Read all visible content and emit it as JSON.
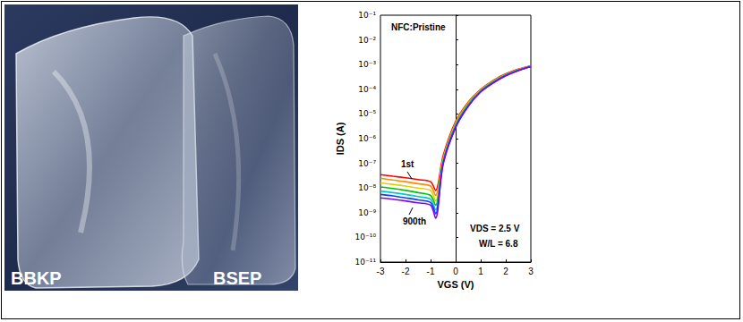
{
  "photo": {
    "labels": [
      "BBKP",
      "BSEP"
    ]
  },
  "chart_data": {
    "type": "line",
    "title": "NFC:Pristine",
    "xlabel": "VGS (V)",
    "ylabel": "IDS (A)",
    "x": [
      -3,
      -2.5,
      -2,
      -1.5,
      -1,
      -0.8,
      -0.5,
      0,
      0.5,
      1,
      1.5,
      2,
      2.5,
      3
    ],
    "series": [
      {
        "color": "#ff0000",
        "values": [
          3.5e-08,
          3e-08,
          2.6e-08,
          2.2e-08,
          1.8e-08,
          8e-09,
          2e-07,
          5e-06,
          3e-05,
          0.0001,
          0.00023,
          0.00042,
          0.00065,
          0.0009
        ]
      },
      {
        "color": "#ff8800",
        "values": [
          2.5e-08,
          2.1e-08,
          1.8e-08,
          1.5e-08,
          1.2e-08,
          5e-09,
          1.6e-07,
          4.5e-06,
          2.8e-05,
          9.5e-05,
          0.00022,
          0.0004,
          0.00063,
          0.00088
        ]
      },
      {
        "color": "#e0d000",
        "values": [
          1.6e-08,
          1.4e-08,
          1.2e-08,
          1e-08,
          8e-09,
          3e-09,
          1.4e-07,
          4e-06,
          2.6e-05,
          9e-05,
          0.00021,
          0.00039,
          0.00061,
          0.00086
        ]
      },
      {
        "color": "#00c000",
        "values": [
          1.1e-08,
          9.5e-09,
          8e-09,
          6.5e-09,
          5e-09,
          2e-09,
          1.2e-07,
          3.6e-06,
          2.4e-05,
          8.6e-05,
          0.0002,
          0.00038,
          0.0006,
          0.00085
        ]
      },
      {
        "color": "#00c8c8",
        "values": [
          7.5e-09,
          6.5e-09,
          5.5e-09,
          4.5e-09,
          3.5e-09,
          1.3e-09,
          1.1e-07,
          3.3e-06,
          2.2e-05,
          8.2e-05,
          0.00019,
          0.00037,
          0.00059,
          0.00084
        ]
      },
      {
        "color": "#0040ff",
        "values": [
          5.5e-09,
          4.8e-09,
          4e-09,
          3.3e-09,
          2.6e-09,
          9e-10,
          1e-07,
          3e-06,
          2.1e-05,
          8e-05,
          0.000185,
          0.00036,
          0.00058,
          0.00083
        ]
      },
      {
        "color": "#8000ff",
        "values": [
          4e-09,
          3.5e-09,
          3e-09,
          2.5e-09,
          2e-09,
          6e-10,
          9e-08,
          2.8e-06,
          2e-05,
          7.8e-05,
          0.00018,
          0.00035,
          0.00057,
          0.00082
        ]
      }
    ],
    "xlim": [
      -3,
      3
    ],
    "xticks": [
      -3,
      -2,
      -1,
      0,
      1,
      2,
      3
    ],
    "ylim": [
      1e-11,
      0.1
    ],
    "yticks": [
      {
        "value": 1e-11,
        "label": "10⁻¹¹"
      },
      {
        "value": 1e-10,
        "label": "10⁻¹⁰"
      },
      {
        "value": 1e-09,
        "label": "10⁻⁹"
      },
      {
        "value": 1e-08,
        "label": "10⁻⁸"
      },
      {
        "value": 1e-07,
        "label": "10⁻⁷"
      },
      {
        "value": 1e-06,
        "label": "10⁻⁶"
      },
      {
        "value": 1e-05,
        "label": "10⁻⁵"
      },
      {
        "value": 0.0001,
        "label": "10⁻⁴"
      },
      {
        "value": 0.001,
        "label": "10⁻³"
      },
      {
        "value": 0.01,
        "label": "10⁻²"
      },
      {
        "value": 0.1,
        "label": "10⁻¹"
      }
    ],
    "log": "y",
    "grid": false,
    "annotations": [
      "1st",
      "900th",
      "VDS = 2.5 V",
      "W/L = 6.8"
    ]
  }
}
